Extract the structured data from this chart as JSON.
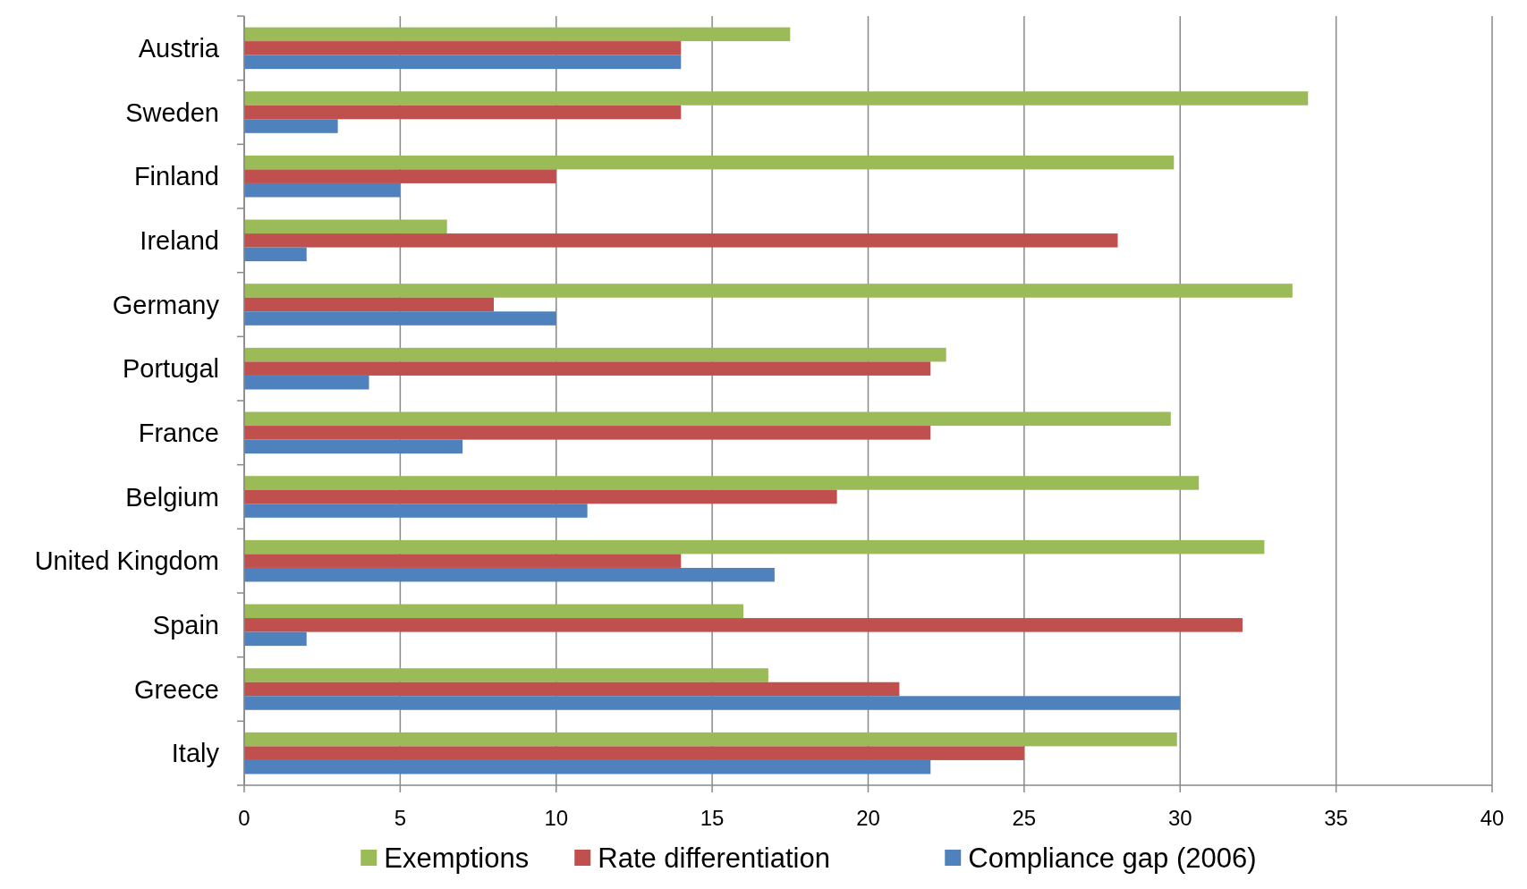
{
  "chart_data": {
    "type": "bar",
    "orientation": "horizontal",
    "categories": [
      "Austria",
      "Sweden",
      "Finland",
      "Ireland",
      "Germany",
      "Portugal",
      "France",
      "Belgium",
      "United Kingdom",
      "Spain",
      "Greece",
      "Italy"
    ],
    "series": [
      {
        "name": "Exemptions",
        "color": "#9bbb59",
        "values": [
          17.5,
          34.1,
          29.8,
          6.5,
          33.6,
          22.5,
          29.7,
          30.6,
          32.7,
          16,
          16.8,
          29.9
        ]
      },
      {
        "name": "Rate differentiation",
        "color": "#c0504d",
        "values": [
          14,
          14,
          10,
          28,
          8,
          22,
          22,
          19,
          14,
          32,
          21,
          25
        ]
      },
      {
        "name": "Compliance gap (2006)",
        "color": "#4f81bd",
        "values": [
          14,
          3,
          5,
          2,
          10,
          4,
          7,
          11,
          17,
          2,
          30,
          22
        ]
      }
    ],
    "xlim": [
      0,
      40
    ],
    "xticks": [
      0,
      5,
      10,
      15,
      20,
      25,
      30,
      35,
      40
    ],
    "grid": "x",
    "legend": "bottom"
  }
}
